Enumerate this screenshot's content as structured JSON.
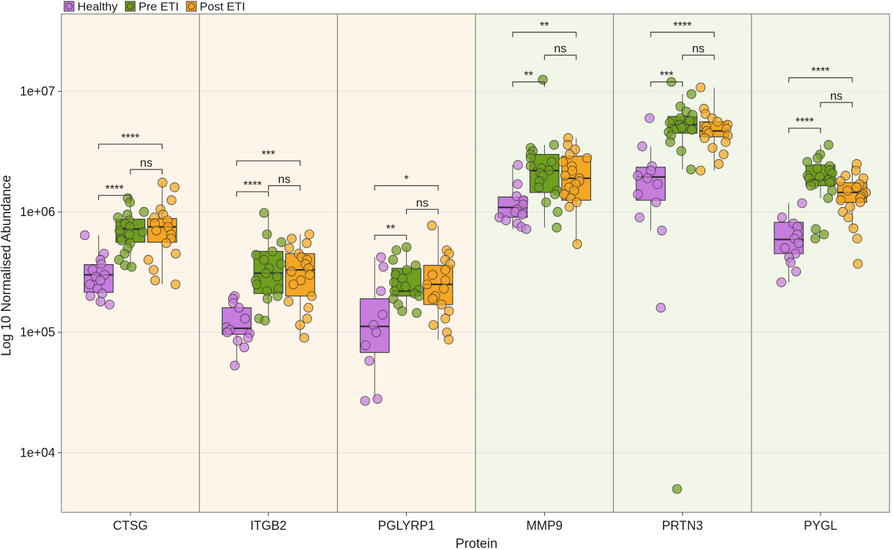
{
  "chart_data": {
    "type": "box",
    "title": "",
    "xlabel": "Protein",
    "ylabel": "Log 10 Normalised Abundance",
    "y_scale": "log10",
    "ylim": [
      3200,
      44000000
    ],
    "y_ticks": [
      10000,
      100000,
      1000000,
      10000000
    ],
    "y_tick_labels": [
      "1e+04",
      "1e+05",
      "1e+06",
      "1e+07"
    ],
    "grid": true,
    "legend": {
      "placement": "top-left",
      "entries": [
        {
          "name": "Healthy",
          "color": "#c77cde"
        },
        {
          "name": "Pre ETI",
          "color": "#6f9f1e"
        },
        {
          "name": "Post ETI",
          "color": "#f5a623"
        }
      ]
    },
    "panel_backgrounds": [
      "#fdf5e9",
      "#fdf5e9",
      "#fdf5e9",
      "#f1f6e9",
      "#f1f6e9",
      "#f1f6e9"
    ],
    "categories": [
      "CTSG",
      "ITGB2",
      "PGLYRP1",
      "MMP9",
      "PRTN3",
      "PYGL"
    ],
    "series": [
      {
        "name": "Healthy",
        "color": "#c77cde",
        "boxes": [
          {
            "q1": 215000,
            "median": 300000,
            "q3": 365000,
            "whisker_low": 170000,
            "whisker_high": 640000
          },
          {
            "q1": 96000,
            "median": 108000,
            "q3": 160000,
            "whisker_low": 53000,
            "whisker_high": 200000
          },
          {
            "q1": 68000,
            "median": 112000,
            "q3": 190000,
            "whisker_low": 27000,
            "whisker_high": 420000
          },
          {
            "q1": 900000,
            "median": 1090000,
            "q3": 1330000,
            "whisker_low": 720000,
            "whisker_high": 2450000
          },
          {
            "q1": 1250000,
            "median": 1950000,
            "q3": 2350000,
            "whisker_low": 700000,
            "whisker_high": 3500000
          },
          {
            "q1": 450000,
            "median": 590000,
            "q3": 820000,
            "whisker_low": 260000,
            "whisker_high": 1180000
          }
        ],
        "points": [
          [
            640000,
            450000,
            400000,
            370000,
            330000,
            300000,
            290000,
            270000,
            250000,
            230000,
            210000,
            200000,
            180000,
            170000
          ],
          [
            200000,
            190000,
            175000,
            160000,
            130000,
            110000,
            105000,
            100000,
            98000,
            90000,
            85000,
            75000,
            53000
          ],
          [
            420000,
            350000,
            220000,
            140000,
            115000,
            100000,
            78000,
            58000,
            28000,
            27000
          ],
          [
            2450000,
            1700000,
            1350000,
            1250000,
            1150000,
            1050000,
            1000000,
            950000,
            900000,
            850000,
            800000,
            750000,
            720000
          ],
          [
            6000000,
            3500000,
            2400000,
            2200000,
            2000000,
            1900000,
            1700000,
            1400000,
            1200000,
            900000,
            700000,
            160000
          ],
          [
            1180000,
            900000,
            800000,
            750000,
            650000,
            600000,
            550000,
            500000,
            450000,
            420000,
            380000,
            320000,
            260000
          ]
        ]
      },
      {
        "name": "Pre ETI",
        "color": "#6f9f1e",
        "boxes": [
          {
            "q1": 560000,
            "median": 720000,
            "q3": 870000,
            "whisker_low": 350000,
            "whisker_high": 1300000
          },
          {
            "q1": 210000,
            "median": 310000,
            "q3": 470000,
            "whisker_low": 125000,
            "whisker_high": 980000
          },
          {
            "q1": 200000,
            "median": 220000,
            "q3": 340000,
            "whisker_low": 145000,
            "whisker_high": 510000
          },
          {
            "q1": 1450000,
            "median": 2200000,
            "q3": 3000000,
            "whisker_low": 740000,
            "whisker_high": 3600000
          },
          {
            "q1": 4500000,
            "median": 5300000,
            "q3": 6200000,
            "whisker_low": 2250000,
            "whisker_high": 9500000
          },
          {
            "q1": 1650000,
            "median": 1850000,
            "q3": 2450000,
            "whisker_low": 1300000,
            "whisker_high": 3600000
          }
        ],
        "points": [
          [
            1300000,
            1200000,
            1000000,
            950000,
            900000,
            850000,
            800000,
            750000,
            700000,
            680000,
            650000,
            600000,
            580000,
            550000,
            500000,
            450000,
            400000,
            360000,
            350000
          ],
          [
            980000,
            650000,
            560000,
            470000,
            440000,
            400000,
            370000,
            340000,
            310000,
            290000,
            270000,
            250000,
            230000,
            220000,
            200000,
            190000,
            130000,
            125000
          ],
          [
            510000,
            480000,
            400000,
            360000,
            330000,
            300000,
            280000,
            260000,
            240000,
            225000,
            220000,
            210000,
            200000,
            190000,
            170000,
            150000,
            145000
          ],
          [
            12500000,
            3600000,
            3400000,
            3200000,
            3000000,
            2800000,
            2600000,
            2400000,
            2300000,
            2200000,
            2100000,
            2000000,
            1800000,
            1600000,
            1500000,
            1400000,
            1200000,
            1000000,
            740000
          ],
          [
            12000000,
            9500000,
            7500000,
            6800000,
            6400000,
            6000000,
            5700000,
            5500000,
            5300000,
            5100000,
            5000000,
            4800000,
            4600000,
            4300000,
            3800000,
            3200000,
            2250000,
            5000
          ],
          [
            3600000,
            3000000,
            2800000,
            2600000,
            2400000,
            2300000,
            2200000,
            2100000,
            2000000,
            1950000,
            1900000,
            1850000,
            1800000,
            1750000,
            1700000,
            1650000,
            1500000,
            1300000,
            720000,
            650000,
            600000
          ]
        ]
      },
      {
        "name": "Post ETI",
        "color": "#f5a623",
        "boxes": [
          {
            "q1": 560000,
            "median": 750000,
            "q3": 880000,
            "whisker_low": 250000,
            "whisker_high": 1750000
          },
          {
            "q1": 200000,
            "median": 330000,
            "q3": 450000,
            "whisker_low": 90000,
            "whisker_high": 650000
          },
          {
            "q1": 170000,
            "median": 250000,
            "q3": 360000,
            "whisker_low": 87000,
            "whisker_high": 770000
          },
          {
            "q1": 1250000,
            "median": 1900000,
            "q3": 2900000,
            "whisker_low": 540000,
            "whisker_high": 4100000
          },
          {
            "q1": 4200000,
            "median": 4700000,
            "q3": 5600000,
            "whisker_low": 2200000,
            "whisker_high": 10800000
          },
          {
            "q1": 1200000,
            "median": 1450000,
            "q3": 1750000,
            "whisker_low": 730000,
            "whisker_high": 2500000
          }
        ],
        "points": [
          [
            1750000,
            1600000,
            1250000,
            1050000,
            950000,
            900000,
            850000,
            800000,
            750000,
            700000,
            650000,
            600000,
            550000,
            450000,
            400000,
            330000,
            270000,
            250000
          ],
          [
            650000,
            600000,
            550000,
            500000,
            450000,
            420000,
            400000,
            370000,
            340000,
            320000,
            300000,
            270000,
            250000,
            200000,
            180000,
            160000,
            130000,
            115000,
            90000
          ],
          [
            770000,
            480000,
            450000,
            400000,
            370000,
            330000,
            300000,
            270000,
            250000,
            230000,
            200000,
            190000,
            170000,
            150000,
            130000,
            115000,
            100000,
            87000
          ],
          [
            4100000,
            3600000,
            3300000,
            3000000,
            2800000,
            2600000,
            2400000,
            2200000,
            2000000,
            1900000,
            1800000,
            1700000,
            1600000,
            1500000,
            1400000,
            1300000,
            1200000,
            1100000,
            540000
          ],
          [
            10800000,
            7200000,
            6500000,
            6000000,
            5600000,
            5300000,
            5100000,
            4900000,
            4700000,
            4500000,
            4300000,
            4100000,
            3800000,
            3400000,
            3000000,
            2500000,
            2200000
          ],
          [
            2500000,
            2200000,
            2000000,
            1900000,
            1800000,
            1700000,
            1600000,
            1500000,
            1450000,
            1400000,
            1350000,
            1300000,
            1250000,
            1200000,
            1100000,
            1000000,
            900000,
            730000,
            600000,
            370000
          ]
        ]
      }
    ],
    "comparisons": [
      [
        {
          "from": 0,
          "to": 1,
          "y": 1370000,
          "label": "****"
        },
        {
          "from": 1,
          "to": 2,
          "y": 2250000,
          "label": "ns"
        },
        {
          "from": 0,
          "to": 2,
          "y": 3650000,
          "label": "****"
        }
      ],
      [
        {
          "from": 0,
          "to": 1,
          "y": 1470000,
          "label": "****"
        },
        {
          "from": 1,
          "to": 2,
          "y": 1650000,
          "label": "ns"
        },
        {
          "from": 0,
          "to": 2,
          "y": 2650000,
          "label": "***"
        }
      ],
      [
        {
          "from": 0,
          "to": 1,
          "y": 640000,
          "label": "**"
        },
        {
          "from": 1,
          "to": 2,
          "y": 1050000,
          "label": "ns"
        },
        {
          "from": 0,
          "to": 2,
          "y": 1650000,
          "label": "*"
        }
      ],
      [
        {
          "from": 0,
          "to": 1,
          "y": 12000000,
          "label": "**"
        },
        {
          "from": 1,
          "to": 2,
          "y": 20000000,
          "label": "ns"
        },
        {
          "from": 0,
          "to": 2,
          "y": 31000000,
          "label": "**"
        }
      ],
      [
        {
          "from": 0,
          "to": 1,
          "y": 12000000,
          "label": "***"
        },
        {
          "from": 1,
          "to": 2,
          "y": 20000000,
          "label": "ns"
        },
        {
          "from": 0,
          "to": 2,
          "y": 31000000,
          "label": "****"
        }
      ],
      [
        {
          "from": 0,
          "to": 1,
          "y": 4950000,
          "label": "****"
        },
        {
          "from": 1,
          "to": 2,
          "y": 8100000,
          "label": "ns"
        },
        {
          "from": 0,
          "to": 2,
          "y": 13000000,
          "label": "****"
        }
      ]
    ]
  }
}
